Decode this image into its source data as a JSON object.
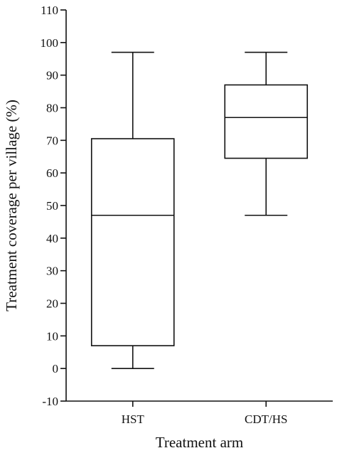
{
  "chart_data": {
    "type": "box",
    "title": "",
    "xlabel": "Treatment arm",
    "ylabel": "Treatment coverage per village (%)",
    "ylim": [
      -10,
      110
    ],
    "yticks": [
      -10,
      0,
      10,
      20,
      30,
      40,
      50,
      60,
      70,
      80,
      90,
      100,
      110
    ],
    "ytick_labels": [
      "-10",
      "0",
      "10",
      "20",
      "30",
      "40",
      "50",
      "60",
      "70",
      "80",
      "90",
      "100",
      "110"
    ],
    "categories": [
      "HST",
      "CDT/HS"
    ],
    "boxes": [
      {
        "category": "HST",
        "min": 0,
        "q1": 7,
        "median": 47,
        "q3": 70.5,
        "max": 97
      },
      {
        "category": "CDT/HS",
        "min": 47,
        "q1": 64.5,
        "median": 77,
        "q3": 87,
        "max": 97
      }
    ],
    "grid": false,
    "legend": "none"
  },
  "colors": {
    "ink": "#111111",
    "background": "#ffffff"
  }
}
